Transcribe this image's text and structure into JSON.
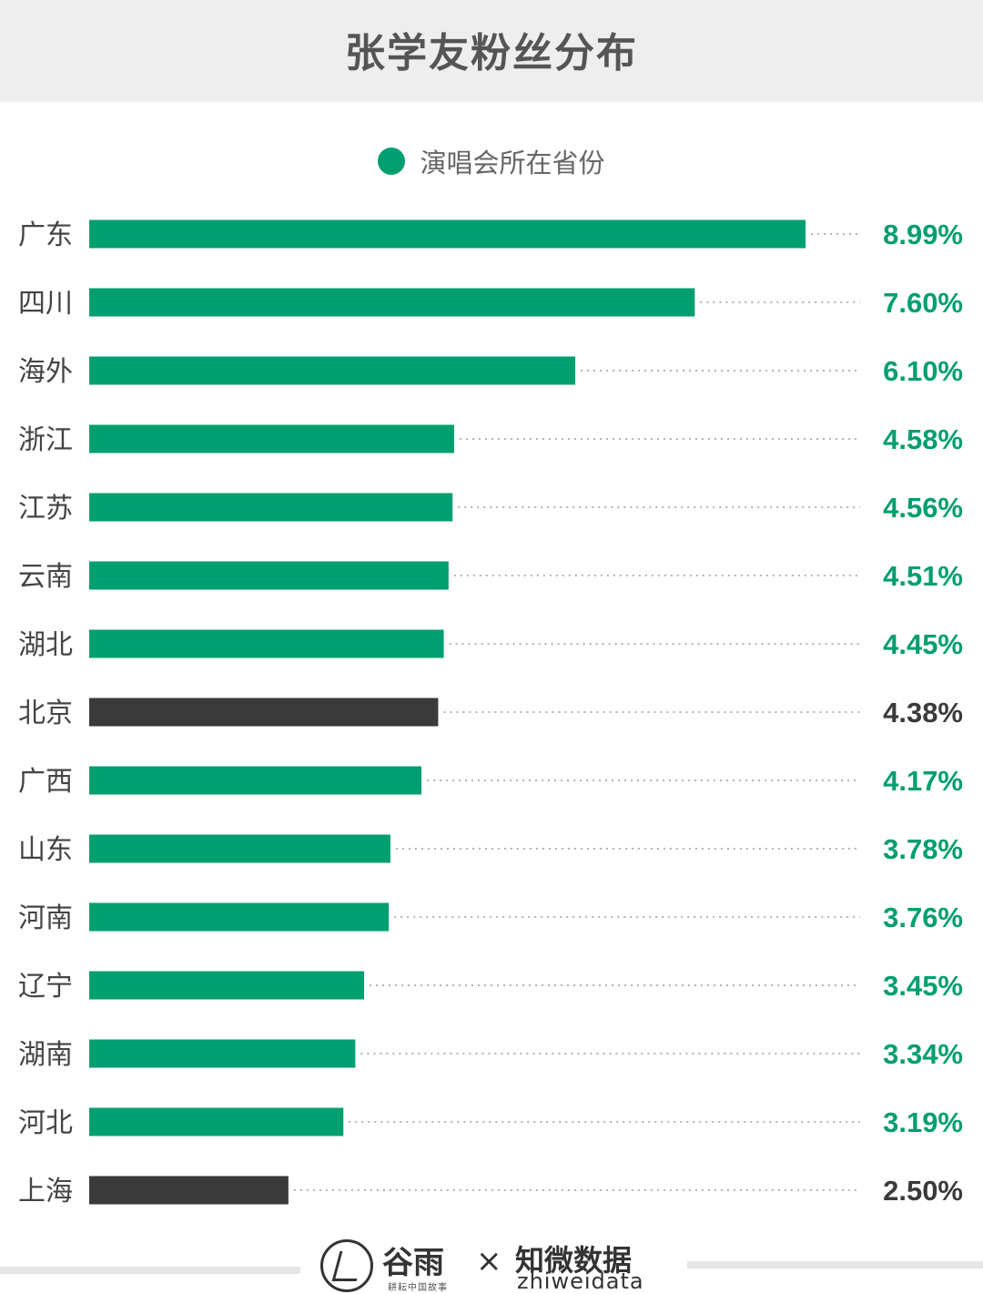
{
  "title": "张学友粉丝分布",
  "legend": {
    "label": "演唱会所在省份",
    "color": "#009f6f"
  },
  "colors": {
    "concert_province": "#009f6f",
    "other": "#3a3a3a",
    "leader_line": "#9a9a9a"
  },
  "chart_data": {
    "type": "bar",
    "orientation": "horizontal",
    "title": "张学友粉丝分布",
    "xlabel": "",
    "ylabel": "",
    "grid": false,
    "legend_position": "top",
    "unit": "%",
    "categories": [
      "广东",
      "四川",
      "海外",
      "浙江",
      "江苏",
      "云南",
      "湖北",
      "北京",
      "广西",
      "山东",
      "河南",
      "辽宁",
      "湖南",
      "河北",
      "上海"
    ],
    "values": [
      8.99,
      7.6,
      6.1,
      4.58,
      4.56,
      4.51,
      4.45,
      4.38,
      4.17,
      3.78,
      3.76,
      3.45,
      3.34,
      3.19,
      2.5
    ],
    "value_labels": [
      "8.99%",
      "7.60%",
      "6.10%",
      "4.58%",
      "4.56%",
      "4.51%",
      "4.45%",
      "4.38%",
      "4.17%",
      "3.78%",
      "3.76%",
      "3.45%",
      "3.34%",
      "3.19%",
      "2.50%"
    ],
    "is_concert_province": [
      true,
      true,
      true,
      true,
      true,
      true,
      true,
      false,
      true,
      true,
      true,
      true,
      true,
      true,
      false
    ],
    "series": [
      {
        "name": "演唱会所在省份"
      }
    ]
  },
  "footer": {
    "brand_a": "谷雨",
    "brand_a_sub": "耕耘中国故事",
    "cross": "×",
    "brand_b": "知微数据",
    "brand_b_sub": "zhiweidata"
  }
}
